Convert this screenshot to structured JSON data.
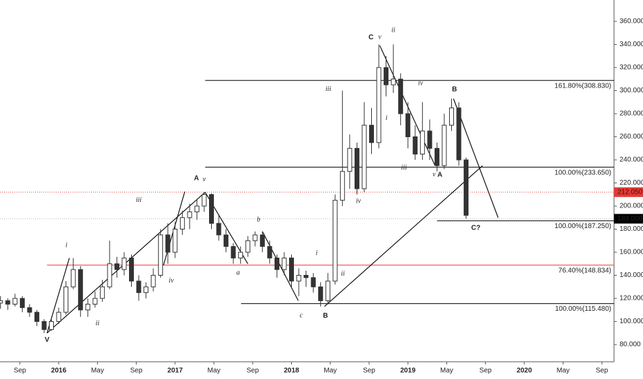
{
  "chart_data": {
    "type": "candlestick",
    "x": [
      -6,
      -5.25,
      -4.5,
      -3.75,
      -3,
      -2.25,
      -1.5,
      -0.75,
      0,
      0.75,
      1.5,
      2.25,
      3,
      3.75,
      4.5,
      5.25,
      6,
      6.75,
      7.5,
      8.25,
      9,
      9.75,
      10.5,
      11.25,
      12,
      12.75,
      13.5,
      14.25,
      15,
      15.75,
      16.5,
      17.25,
      18,
      18.75,
      19.5,
      20.25,
      21,
      21.75,
      22.5,
      23.25,
      24,
      24.75,
      25.5,
      26.25,
      27,
      27.75,
      28.5,
      29.25,
      30,
      30.75,
      31.5,
      32.25,
      33,
      33.75,
      34.5,
      35.25,
      36,
      36.75,
      37.5,
      38.25,
      39,
      39.75,
      40.5,
      41.25,
      42
    ],
    "open": [
      116,
      118,
      115,
      120,
      112,
      108,
      100,
      93,
      100,
      108,
      130,
      145,
      110,
      115,
      120,
      130,
      150,
      145,
      155,
      135,
      125,
      130,
      140,
      175,
      160,
      180,
      190,
      195,
      200,
      210,
      185,
      175,
      165,
      155,
      160,
      170,
      175,
      165,
      155,
      145,
      155,
      135,
      140,
      138,
      130,
      118,
      135,
      205,
      230,
      250,
      215,
      270,
      255,
      320,
      305,
      310,
      280,
      260,
      245,
      265,
      250,
      235,
      270,
      285,
      240
    ],
    "high": [
      122,
      120,
      124,
      122,
      115,
      110,
      102,
      104,
      112,
      135,
      155,
      148,
      120,
      126,
      136,
      170,
      156,
      160,
      158,
      140,
      134,
      146,
      180,
      185,
      186,
      196,
      202,
      206,
      212,
      211,
      192,
      180,
      168,
      165,
      174,
      178,
      178,
      170,
      158,
      160,
      158,
      146,
      144,
      142,
      134,
      142,
      210,
      300,
      262,
      255,
      290,
      285,
      340,
      330,
      340,
      315,
      290,
      270,
      290,
      275,
      255,
      280,
      293,
      290,
      242
    ],
    "low": [
      111,
      110,
      113,
      108,
      104,
      96,
      90,
      92,
      98,
      106,
      128,
      104,
      104,
      112,
      117,
      128,
      138,
      140,
      130,
      118,
      120,
      126,
      138,
      150,
      155,
      175,
      180,
      188,
      195,
      180,
      170,
      160,
      150,
      150,
      156,
      165,
      160,
      150,
      138,
      140,
      130,
      122,
      130,
      125,
      113,
      115,
      132,
      200,
      215,
      210,
      212,
      245,
      250,
      295,
      298,
      270,
      250,
      240,
      240,
      240,
      230,
      232,
      265,
      235,
      189
    ],
    "close": [
      118,
      115,
      120,
      112,
      108,
      100,
      93,
      100,
      108,
      130,
      145,
      110,
      115,
      120,
      130,
      150,
      145,
      155,
      135,
      125,
      130,
      140,
      175,
      160,
      180,
      190,
      195,
      200,
      210,
      185,
      175,
      165,
      155,
      160,
      170,
      175,
      165,
      155,
      145,
      155,
      135,
      140,
      138,
      130,
      118,
      135,
      205,
      230,
      250,
      215,
      270,
      255,
      320,
      305,
      310,
      280,
      260,
      245,
      265,
      250,
      235,
      270,
      285,
      240,
      192
    ],
    "xlim": [
      -6.05,
      57.25
    ],
    "xticks": [
      {
        "value": -4,
        "label": "Sep"
      },
      {
        "value": 0,
        "label": "2016"
      },
      {
        "value": 4,
        "label": "May"
      },
      {
        "value": 8,
        "label": "Sep"
      },
      {
        "value": 12,
        "label": "2017"
      },
      {
        "value": 16,
        "label": "May"
      },
      {
        "value": 20,
        "label": "Sep"
      },
      {
        "value": 24,
        "label": "2018"
      },
      {
        "value": 28,
        "label": "May"
      },
      {
        "value": 32,
        "label": "Sep"
      },
      {
        "value": 36,
        "label": "2019"
      },
      {
        "value": 40,
        "label": "May"
      },
      {
        "value": 44,
        "label": "Sep"
      },
      {
        "value": 48,
        "label": "2020"
      },
      {
        "value": 52,
        "label": "May"
      },
      {
        "value": 56,
        "label": "Sep"
      }
    ],
    "ylim": [
      65.1,
      378.5
    ],
    "yticks": [
      {
        "value": 80,
        "label": "80.000"
      },
      {
        "value": 100,
        "label": "100.000"
      },
      {
        "value": 120,
        "label": "120.000"
      },
      {
        "value": 140,
        "label": "140.000"
      },
      {
        "value": 160,
        "label": "160.000"
      },
      {
        "value": 180,
        "label": "180.000"
      },
      {
        "value": 200,
        "label": "200.000"
      },
      {
        "value": 220,
        "label": "220.000"
      },
      {
        "value": 240,
        "label": "240.000"
      },
      {
        "value": 260,
        "label": "260.000"
      },
      {
        "value": 280,
        "label": "280.000"
      },
      {
        "value": 300,
        "label": "300.000"
      },
      {
        "value": 320,
        "label": "320.000"
      },
      {
        "value": 340,
        "label": "340.000"
      },
      {
        "value": 360,
        "label": "360.000"
      }
    ],
    "up_color": "#ffffff",
    "down_color": "#333333",
    "levels": [
      {
        "label": "161.80%(308.830)",
        "value": 308.83,
        "x_start": 15.1,
        "color": "#000000"
      },
      {
        "label": "100.00%(233.650)",
        "value": 233.65,
        "x_start": 15.1,
        "color": "#000000"
      },
      {
        "label": "100.00%(187.250)",
        "value": 187.25,
        "x_start": 39,
        "color": "#000000"
      },
      {
        "label": "76.40%(148.834)",
        "value": 148.834,
        "x_start": -1.2,
        "color": "#e53935"
      },
      {
        "label": "100.00%(115.480)",
        "value": 115.48,
        "x_start": 18.8,
        "color": "#000000"
      }
    ],
    "price_lines": [
      {
        "value": 212.05,
        "label": "212.050",
        "color": "#e53935"
      },
      {
        "value": 189,
        "label": "189.000",
        "color": "#000000"
      }
    ],
    "trendlines": [
      {
        "x1": -1.2,
        "y1": 90,
        "x2": 1.1,
        "y2": 155
      },
      {
        "x1": -1.2,
        "y1": 90,
        "x2": 15.1,
        "y2": 212
      },
      {
        "x1": 10.8,
        "y1": 148.7,
        "x2": 13.0,
        "y2": 212.5
      },
      {
        "x1": 15.1,
        "y1": 212,
        "x2": 19.5,
        "y2": 150
      },
      {
        "x1": 21,
        "y1": 178,
        "x2": 24.7,
        "y2": 118
      },
      {
        "x1": 27.4,
        "y1": 113,
        "x2": 43.7,
        "y2": 235
      },
      {
        "x1": 33.1,
        "y1": 339,
        "x2": 38.8,
        "y2": 235
      },
      {
        "x1": 40.7,
        "y1": 293,
        "x2": 45.3,
        "y2": 190
      }
    ],
    "annotations": [
      {
        "text": "V",
        "x": -1.2,
        "y": 84,
        "bold": true
      },
      {
        "text": "i",
        "x": 0.8,
        "y": 166,
        "bold": false
      },
      {
        "text": "ii",
        "x": 4.0,
        "y": 98,
        "bold": false
      },
      {
        "text": "iii",
        "x": 8.25,
        "y": 205,
        "bold": false
      },
      {
        "text": "iv",
        "x": 11.6,
        "y": 135,
        "bold": false
      },
      {
        "text": "A",
        "x": 14.2,
        "y": 224,
        "bold": true
      },
      {
        "text": "v",
        "x": 15.0,
        "y": 223,
        "bold": false
      },
      {
        "text": "a",
        "x": 18.5,
        "y": 142,
        "bold": false
      },
      {
        "text": "b",
        "x": 20.6,
        "y": 188,
        "bold": false
      },
      {
        "text": "c",
        "x": 25.0,
        "y": 105,
        "bold": false
      },
      {
        "text": "B",
        "x": 27.5,
        "y": 105,
        "bold": true
      },
      {
        "text": "i",
        "x": 26.6,
        "y": 159,
        "bold": false
      },
      {
        "text": "ii",
        "x": 29.3,
        "y": 141,
        "bold": false
      },
      {
        "text": "iii",
        "x": 27.8,
        "y": 301,
        "bold": false
      },
      {
        "text": "iv",
        "x": 30.9,
        "y": 204,
        "bold": false
      },
      {
        "text": "C",
        "x": 32.2,
        "y": 346,
        "bold": true
      },
      {
        "text": "v",
        "x": 33.1,
        "y": 346,
        "bold": false
      },
      {
        "text": "ii",
        "x": 34.5,
        "y": 352,
        "bold": false
      },
      {
        "text": "i",
        "x": 33.8,
        "y": 276,
        "bold": false
      },
      {
        "text": "iii",
        "x": 35.6,
        "y": 233,
        "bold": false
      },
      {
        "text": "iv",
        "x": 37.3,
        "y": 306,
        "bold": false
      },
      {
        "text": "v",
        "x": 38.7,
        "y": 227,
        "bold": false
      },
      {
        "text": "A",
        "x": 39.3,
        "y": 227,
        "bold": true
      },
      {
        "text": "B",
        "x": 40.8,
        "y": 301,
        "bold": true
      },
      {
        "text": "C?",
        "x": 43.0,
        "y": 181,
        "bold": true
      }
    ],
    "annotation_color": "#e53935"
  }
}
